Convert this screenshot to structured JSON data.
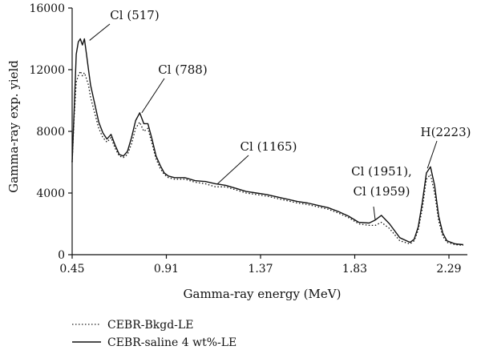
{
  "chart_data": {
    "type": "line",
    "xlabel": "Gamma-ray energy (MeV)",
    "ylabel": "Gamma-ray exp. yield",
    "xlim": [
      0.45,
      2.38
    ],
    "ylim": [
      0,
      16000
    ],
    "xticks": [
      0.45,
      0.91,
      1.37,
      1.83,
      2.29
    ],
    "xtick_labels": [
      "0.45",
      "0.91",
      "1.37",
      "1.83",
      "2.29"
    ],
    "yticks": [
      0,
      4000,
      8000,
      12000,
      16000
    ],
    "ytick_labels": [
      "0",
      "4000",
      "8000",
      "12000",
      "16000"
    ],
    "grid": false,
    "legend_position": "bottom-left, below plot",
    "series": [
      {
        "name": "CEBR-Bkgd-LE",
        "style": "dotted",
        "x": [
          0.45,
          0.46,
          0.47,
          0.48,
          0.49,
          0.5,
          0.51,
          0.52,
          0.53,
          0.54,
          0.56,
          0.58,
          0.6,
          0.62,
          0.64,
          0.66,
          0.68,
          0.7,
          0.72,
          0.74,
          0.76,
          0.78,
          0.8,
          0.82,
          0.84,
          0.86,
          0.88,
          0.9,
          0.92,
          0.95,
          1.0,
          1.05,
          1.1,
          1.15,
          1.2,
          1.25,
          1.3,
          1.35,
          1.4,
          1.45,
          1.5,
          1.55,
          1.6,
          1.65,
          1.7,
          1.75,
          1.8,
          1.85,
          1.9,
          1.93,
          1.96,
          2.0,
          2.05,
          2.1,
          2.12,
          2.14,
          2.16,
          2.18,
          2.2,
          2.22,
          2.24,
          2.26,
          2.28,
          2.32,
          2.36
        ],
        "y": [
          6000,
          9000,
          11200,
          11600,
          11900,
          11600,
          11800,
          11400,
          11000,
          10200,
          9200,
          8200,
          7600,
          7300,
          7600,
          6900,
          6400,
          6300,
          6500,
          7200,
          8200,
          8600,
          8000,
          8200,
          7200,
          6200,
          5600,
          5200,
          5000,
          4900,
          4900,
          4700,
          4600,
          4400,
          4400,
          4200,
          4000,
          3900,
          3800,
          3650,
          3500,
          3350,
          3250,
          3100,
          2950,
          2700,
          2400,
          2000,
          1900,
          1900,
          2100,
          1700,
          900,
          700,
          900,
          1600,
          3000,
          4900,
          5200,
          4000,
          2200,
          1200,
          800,
          650,
          600
        ]
      },
      {
        "name": "CEBR-saline 4 wt%-LE",
        "style": "solid",
        "x": [
          0.45,
          0.46,
          0.47,
          0.48,
          0.49,
          0.5,
          0.51,
          0.52,
          0.53,
          0.54,
          0.56,
          0.58,
          0.6,
          0.62,
          0.64,
          0.66,
          0.68,
          0.7,
          0.72,
          0.74,
          0.76,
          0.78,
          0.8,
          0.82,
          0.84,
          0.86,
          0.88,
          0.9,
          0.92,
          0.95,
          1.0,
          1.05,
          1.1,
          1.15,
          1.2,
          1.25,
          1.3,
          1.35,
          1.4,
          1.45,
          1.5,
          1.55,
          1.6,
          1.65,
          1.7,
          1.75,
          1.8,
          1.85,
          1.9,
          1.93,
          1.96,
          2.0,
          2.05,
          2.1,
          2.12,
          2.14,
          2.16,
          2.18,
          2.2,
          2.22,
          2.24,
          2.26,
          2.28,
          2.32,
          2.36
        ],
        "y": [
          6000,
          9500,
          13000,
          13800,
          14000,
          13600,
          14000,
          13000,
          12000,
          11000,
          9800,
          8600,
          7900,
          7500,
          7800,
          7100,
          6500,
          6400,
          6700,
          7600,
          8700,
          9200,
          8500,
          8500,
          7500,
          6400,
          5800,
          5300,
          5100,
          5000,
          5000,
          4800,
          4750,
          4600,
          4500,
          4300,
          4100,
          4000,
          3900,
          3750,
          3600,
          3450,
          3350,
          3200,
          3050,
          2800,
          2500,
          2100,
          2050,
          2250,
          2550,
          2000,
          1100,
          800,
          1000,
          1800,
          3400,
          5300,
          5700,
          4500,
          2500,
          1400,
          900,
          700,
          650
        ]
      }
    ],
    "annotations": [
      {
        "label": "Cl (517)",
        "x": 0.535,
        "y": 13900
      },
      {
        "label": "Cl (788)",
        "x": 0.79,
        "y": 9200
      },
      {
        "label": "Cl (1165)",
        "x": 1.16,
        "y": 4600
      },
      {
        "label": "Cl (1951),",
        "label2": "Cl (1959)",
        "x": 1.93,
        "y": 2250
      },
      {
        "label": "H(2223)",
        "x": 2.185,
        "y": 5600
      }
    ]
  }
}
